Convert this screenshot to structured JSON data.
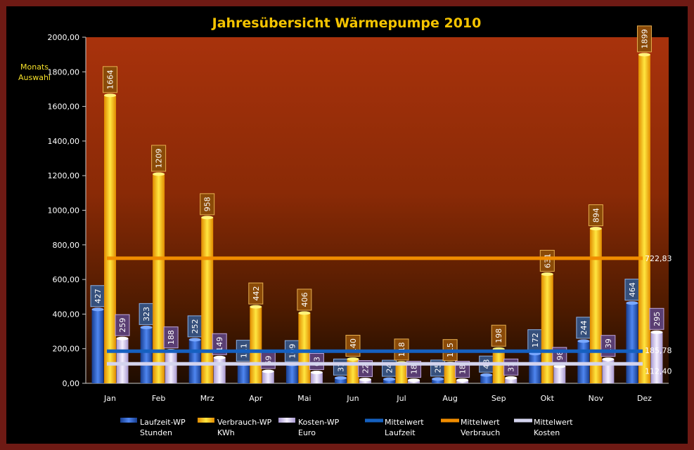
{
  "side_label_line1": "Monats",
  "side_label_line2": "Auswahl",
  "chart_data": {
    "type": "bar",
    "title": "Jahresübersicht Wärmepumpe  2010",
    "categories": [
      "Jan",
      "Feb",
      "Mrz",
      "Apr",
      "Mai",
      "Jun",
      "Jul",
      "Aug",
      "Sep",
      "Okt",
      "Nov",
      "Dez"
    ],
    "ylim": [
      0,
      2000
    ],
    "yticks": [
      "0,00",
      "200,00",
      "400,00",
      "600,00",
      "800,00",
      "1000,00",
      "1200,00",
      "1400,00",
      "1600,00",
      "1800,00",
      "2000,00"
    ],
    "series": [
      {
        "name": "Laufzeit-WP",
        "unit": "Stunden",
        "color": "#2e63c9",
        "values": [
          427,
          323,
          252,
          111,
          109,
          31,
          24,
          25,
          48,
          172,
          244,
          464
        ]
      },
      {
        "name": "Verbrauch-WP",
        "unit": "KWh",
        "color": "#f7b500",
        "values": [
          1664,
          1209,
          958,
          442,
          406,
          140,
          118,
          115,
          198,
          631,
          894,
          1899
        ]
      },
      {
        "name": "Kosten-WP",
        "unit": "Euro",
        "color": "#d8ccf0",
        "values": [
          259,
          188,
          149,
          69,
          63,
          22,
          18,
          18,
          31,
          98,
          139,
          295
        ]
      }
    ],
    "averages": [
      {
        "name": "Mittelwert",
        "name2": "Laufzeit",
        "value": 185.78,
        "label": "185,78",
        "color": "#1560c0"
      },
      {
        "name": "Mittelwert",
        "name2": "Verbrauch",
        "value": 722.83,
        "label": "722,83",
        "color": "#f08c00"
      },
      {
        "name": "Mittelwert",
        "name2": "Kosten",
        "value": 112.4,
        "label": "112,40",
        "color": "#d4d4ee"
      }
    ]
  }
}
